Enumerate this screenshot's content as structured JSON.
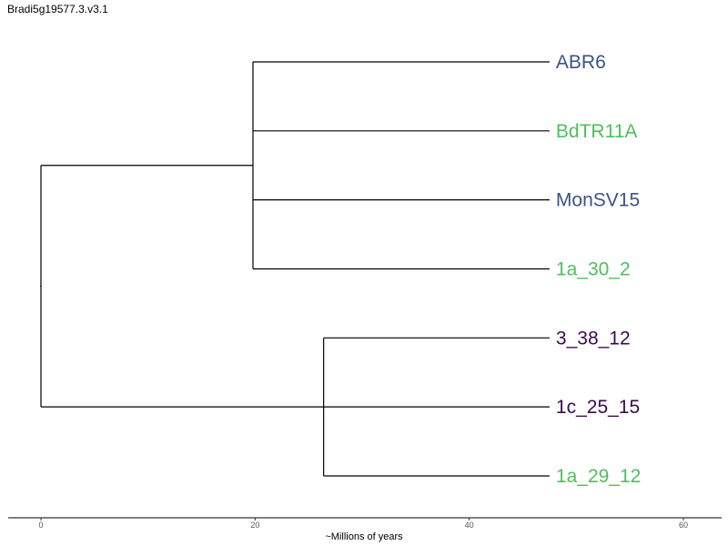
{
  "title": "Bradi5g19577.3.v3.1",
  "colors": {
    "blue": "#3a5288",
    "green": "#4cc05c",
    "purple": "#3d0a4e",
    "branch": "#000000"
  },
  "chart_data": {
    "type": "dendrogram",
    "xlabel": "~Millions of years",
    "xlim": [
      -3,
      63
    ],
    "ticks": [
      0,
      20,
      40,
      60
    ],
    "tick_labels": [
      "0",
      "20",
      "40",
      "60"
    ],
    "leaves": [
      {
        "label": "ABR6",
        "color": "blue"
      },
      {
        "label": "BdTR11A",
        "color": "green"
      },
      {
        "label": "MonSV15",
        "color": "blue"
      },
      {
        "label": "1a_30_2",
        "color": "green"
      },
      {
        "label": "3_38_12",
        "color": "purple"
      },
      {
        "label": "1c_25_15",
        "color": "purple"
      },
      {
        "label": "1a_29_12",
        "color": "green"
      }
    ],
    "leaf_depth": 47.5,
    "clades": [
      {
        "name": "clade-a",
        "depth": 19.8,
        "children": [
          0,
          1,
          2,
          3
        ]
      },
      {
        "name": "clade-b",
        "depth": 26.4,
        "children": [
          4,
          6
        ]
      }
    ],
    "root": {
      "depth": 0,
      "children": [
        "clade-a",
        "clade-b-at-leaf-5"
      ]
    }
  }
}
